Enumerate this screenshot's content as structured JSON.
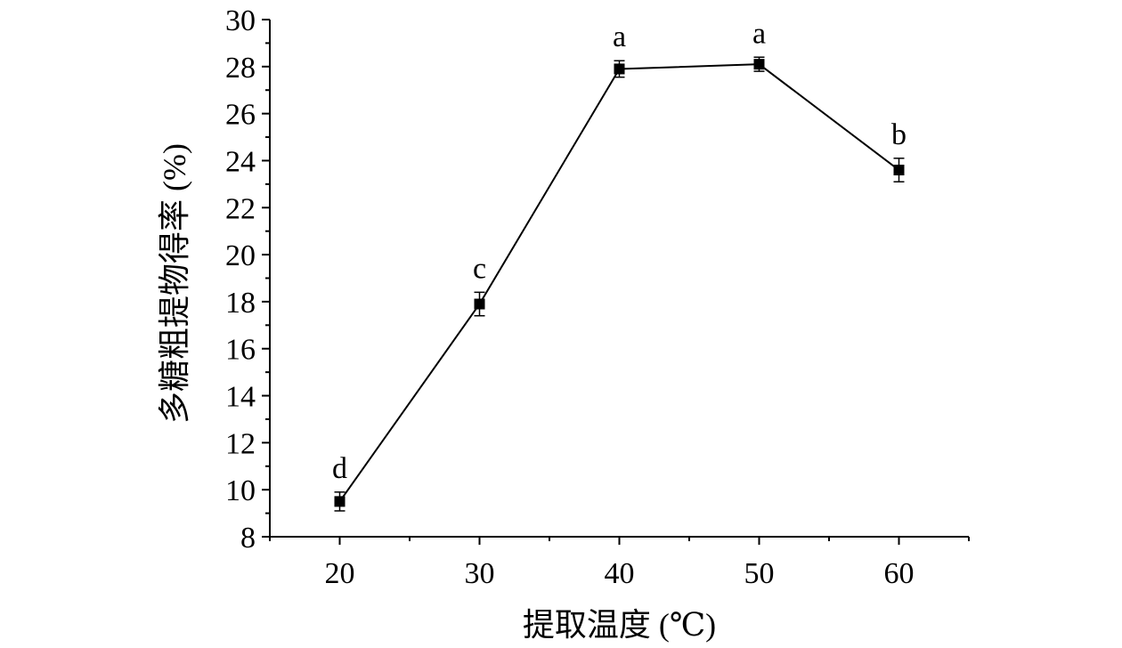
{
  "chart_data": {
    "type": "line",
    "title": "",
    "xlabel": "提取温度 (℃)",
    "ylabel": "多糖粗提物得率 (%)",
    "x": [
      20,
      30,
      40,
      50,
      60
    ],
    "x_ticks": [
      "20",
      "30",
      "40",
      "50",
      "60"
    ],
    "y_ticks": [
      "8",
      "10",
      "12",
      "14",
      "16",
      "18",
      "20",
      "22",
      "24",
      "26",
      "28",
      "30"
    ],
    "xlim": [
      15,
      65
    ],
    "ylim": [
      8,
      30
    ],
    "series": [
      {
        "values": [
          9.5,
          17.9,
          27.9,
          28.1,
          23.6
        ],
        "errors": [
          0.4,
          0.5,
          0.35,
          0.3,
          0.5
        ],
        "labels": [
          "d",
          "c",
          "a",
          "a",
          "b"
        ],
        "marker": "square",
        "color": "#000000"
      }
    ],
    "grid": false,
    "legend": "none"
  }
}
